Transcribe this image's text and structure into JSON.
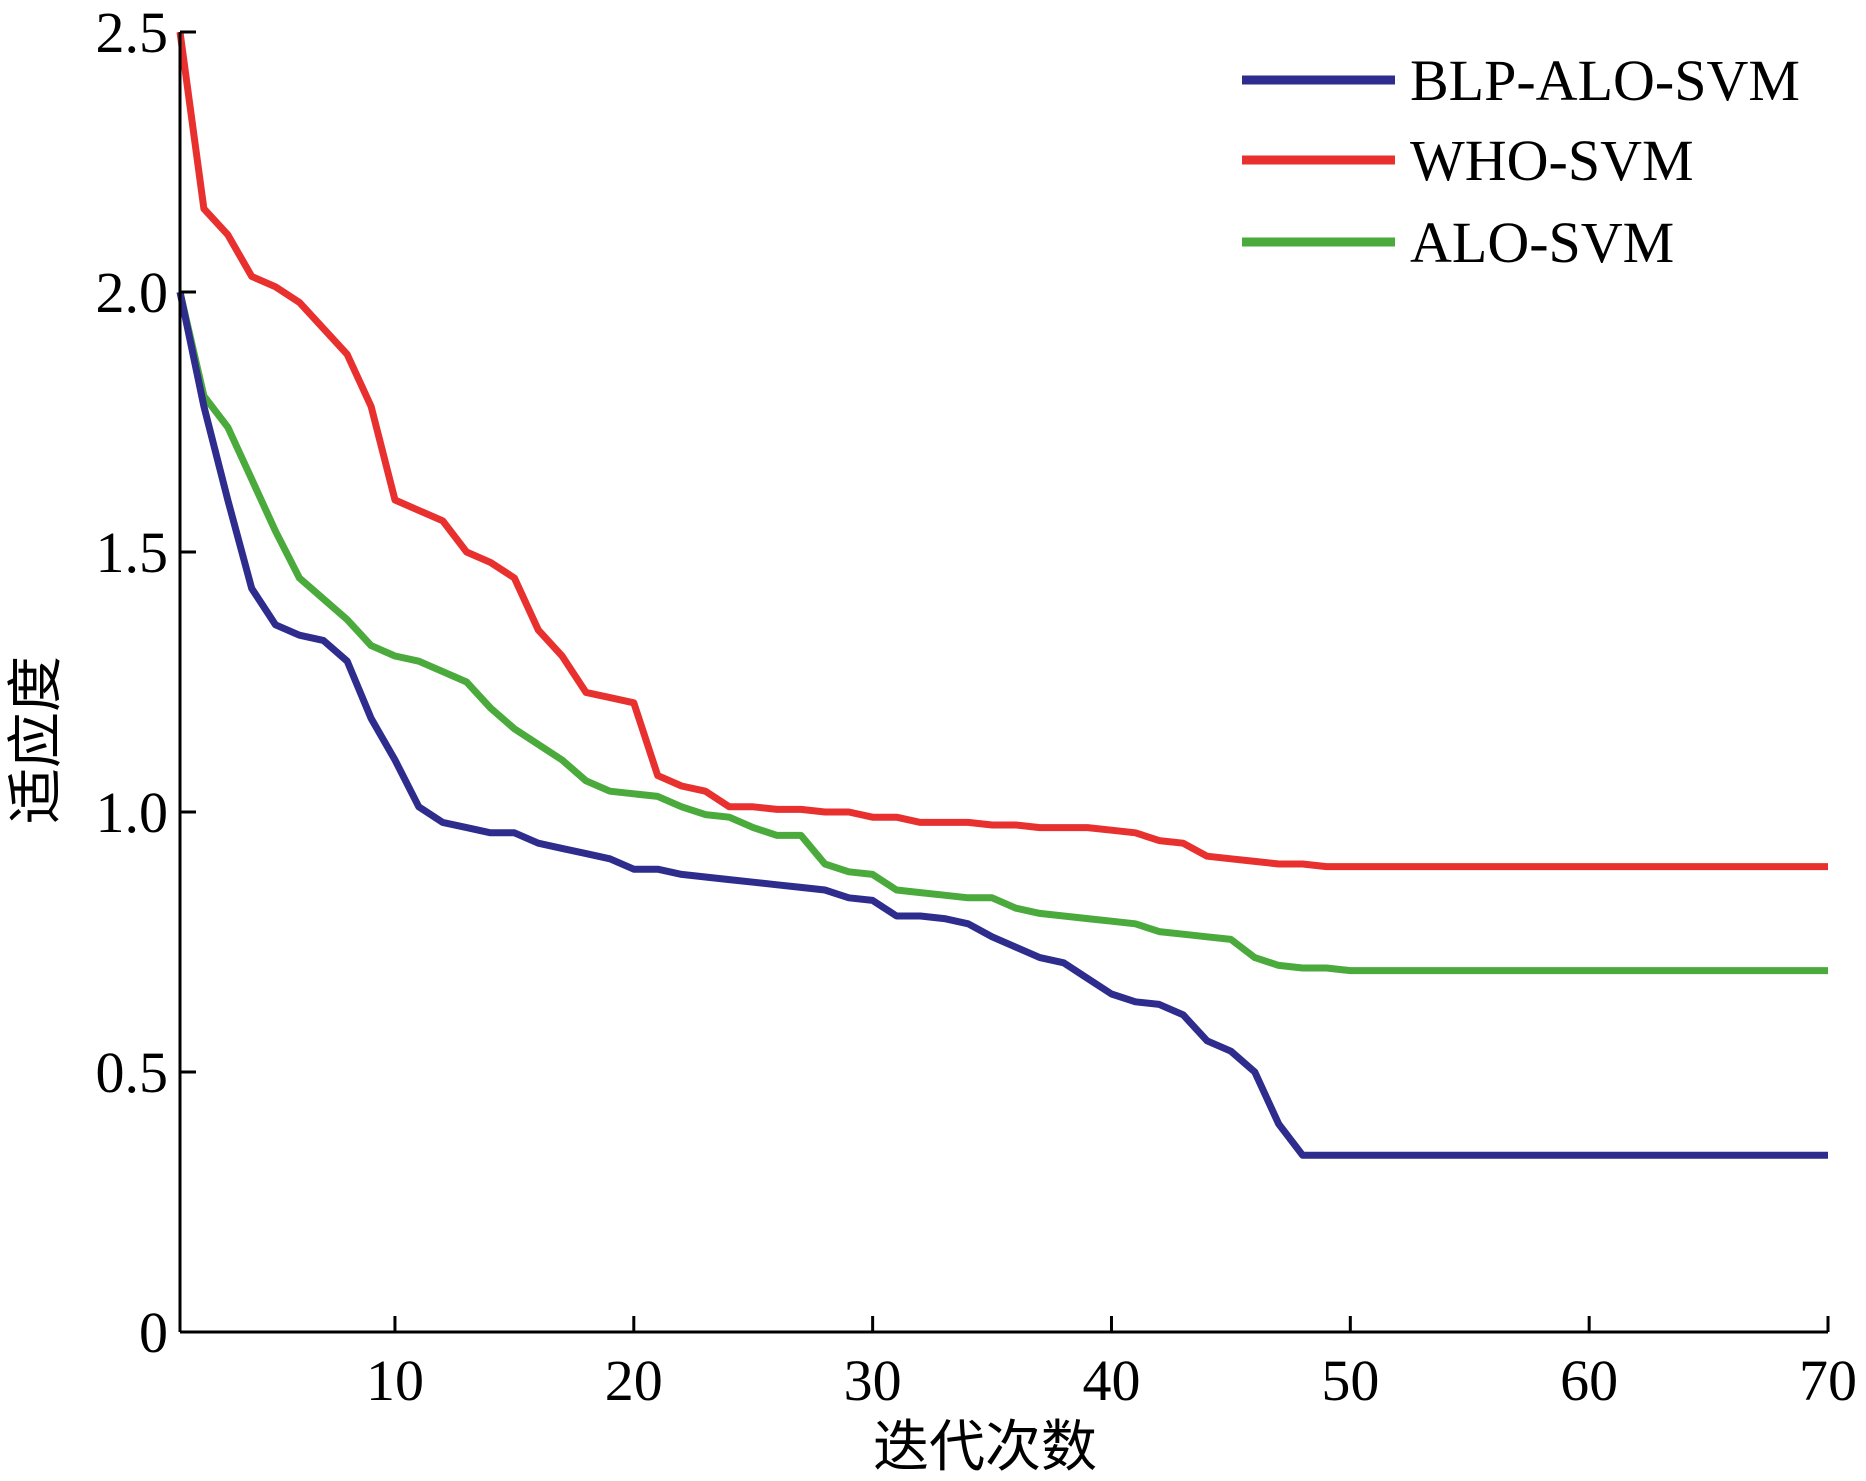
{
  "chart_data": {
    "type": "line",
    "xlabel": "迭代次数",
    "ylabel": "适应度",
    "xlim": [
      1,
      70
    ],
    "ylim": [
      0,
      2.5
    ],
    "xticks": [
      10,
      20,
      30,
      40,
      50,
      60,
      70
    ],
    "xtick_labels": [
      "10",
      "20",
      "30",
      "40",
      "50",
      "60",
      "70"
    ],
    "yticks": [
      0,
      0.5,
      1.0,
      1.5,
      2.0,
      2.5
    ],
    "ytick_labels": [
      "0",
      "0.5",
      "1.0",
      "1.5",
      "2.0",
      "2.5"
    ],
    "grid": false,
    "legend_position": "top-right",
    "series": [
      {
        "name": "BLP-ALO-SVM",
        "color": "#2e2c8c",
        "x": [
          1,
          2,
          3,
          4,
          5,
          6,
          7,
          8,
          9,
          10,
          11,
          12,
          13,
          14,
          15,
          16,
          17,
          18,
          19,
          20,
          21,
          22,
          23,
          24,
          25,
          26,
          27,
          28,
          29,
          30,
          31,
          32,
          33,
          34,
          35,
          36,
          37,
          38,
          39,
          40,
          41,
          42,
          43,
          44,
          45,
          46,
          47,
          48,
          49,
          50,
          60,
          70
        ],
        "y": [
          2.0,
          1.78,
          1.6,
          1.43,
          1.36,
          1.34,
          1.33,
          1.29,
          1.18,
          1.1,
          1.01,
          0.98,
          0.97,
          0.96,
          0.96,
          0.94,
          0.93,
          0.92,
          0.91,
          0.89,
          0.89,
          0.88,
          0.875,
          0.87,
          0.865,
          0.86,
          0.855,
          0.85,
          0.835,
          0.83,
          0.8,
          0.8,
          0.795,
          0.785,
          0.76,
          0.74,
          0.72,
          0.71,
          0.68,
          0.65,
          0.635,
          0.63,
          0.61,
          0.56,
          0.54,
          0.5,
          0.4,
          0.34,
          0.34,
          0.34,
          0.34,
          0.34
        ]
      },
      {
        "name": "WHO-SVM",
        "color": "#e8312f",
        "x": [
          1,
          2,
          3,
          4,
          5,
          6,
          7,
          8,
          9,
          10,
          11,
          12,
          13,
          14,
          15,
          16,
          17,
          18,
          19,
          20,
          21,
          22,
          23,
          24,
          25,
          26,
          27,
          28,
          29,
          30,
          31,
          32,
          33,
          34,
          35,
          36,
          37,
          38,
          39,
          40,
          41,
          42,
          43,
          44,
          45,
          46,
          47,
          48,
          49,
          50,
          60,
          70
        ],
        "y": [
          2.5,
          2.16,
          2.11,
          2.03,
          2.01,
          1.98,
          1.93,
          1.88,
          1.78,
          1.6,
          1.58,
          1.56,
          1.5,
          1.48,
          1.45,
          1.35,
          1.3,
          1.23,
          1.22,
          1.21,
          1.07,
          1.05,
          1.04,
          1.01,
          1.01,
          1.005,
          1.005,
          1.0,
          1.0,
          0.99,
          0.99,
          0.98,
          0.98,
          0.98,
          0.975,
          0.975,
          0.97,
          0.97,
          0.97,
          0.965,
          0.96,
          0.945,
          0.94,
          0.915,
          0.91,
          0.905,
          0.9,
          0.9,
          0.895,
          0.895,
          0.895,
          0.895
        ]
      },
      {
        "name": "ALO-SVM",
        "color": "#4aaa3c",
        "x": [
          1,
          2,
          3,
          4,
          5,
          6,
          7,
          8,
          9,
          10,
          11,
          12,
          13,
          14,
          15,
          16,
          17,
          18,
          19,
          20,
          21,
          22,
          23,
          24,
          25,
          26,
          27,
          28,
          29,
          30,
          31,
          32,
          33,
          34,
          35,
          36,
          37,
          38,
          39,
          40,
          41,
          42,
          43,
          44,
          45,
          46,
          47,
          48,
          49,
          50,
          60,
          70
        ],
        "y": [
          2.0,
          1.8,
          1.74,
          1.64,
          1.54,
          1.45,
          1.41,
          1.37,
          1.32,
          1.3,
          1.29,
          1.27,
          1.25,
          1.2,
          1.16,
          1.13,
          1.1,
          1.06,
          1.04,
          1.035,
          1.03,
          1.01,
          0.995,
          0.99,
          0.97,
          0.955,
          0.955,
          0.9,
          0.885,
          0.88,
          0.85,
          0.845,
          0.84,
          0.835,
          0.835,
          0.815,
          0.805,
          0.8,
          0.795,
          0.79,
          0.785,
          0.77,
          0.765,
          0.76,
          0.755,
          0.72,
          0.705,
          0.7,
          0.7,
          0.695,
          0.695,
          0.695
        ]
      }
    ]
  }
}
